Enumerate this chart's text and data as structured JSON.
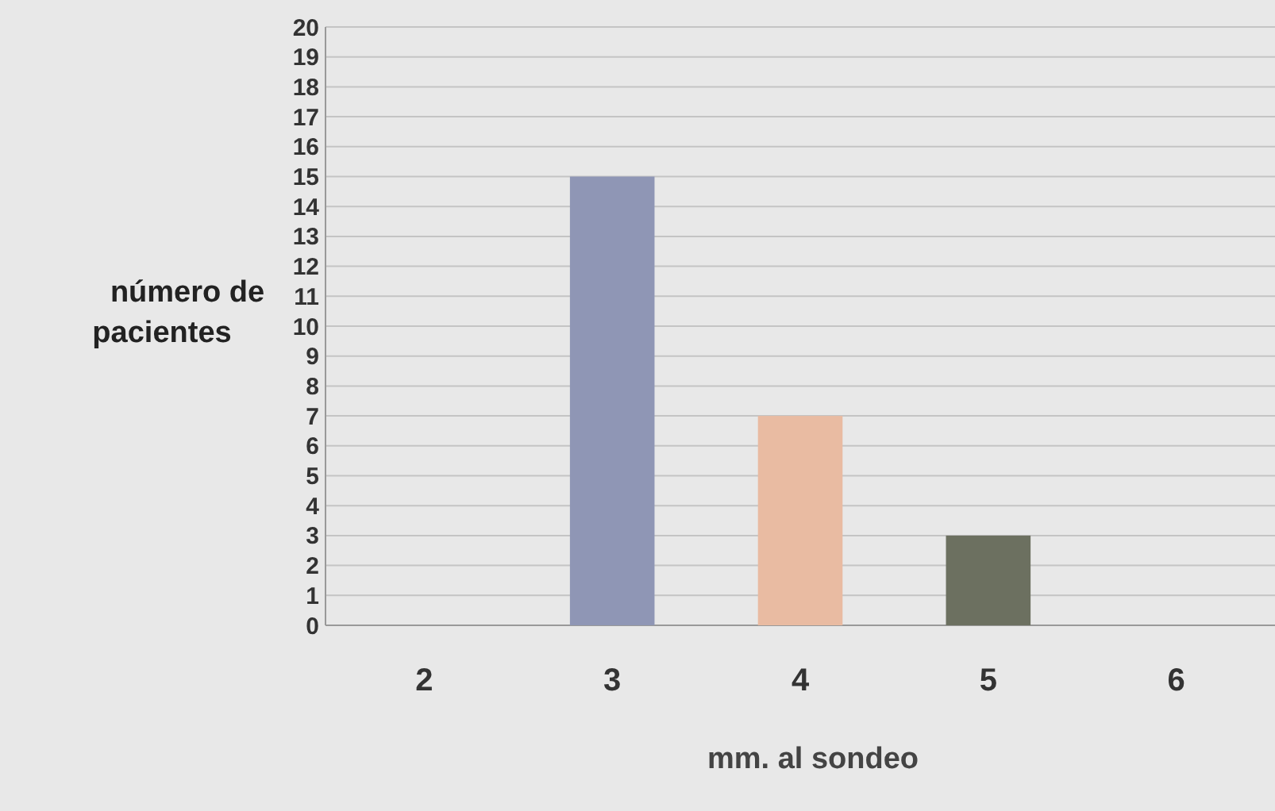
{
  "chart_data": {
    "type": "bar",
    "xlabel": "mm. al sondeo",
    "ylabel": "número de pacientes",
    "categories": [
      "2",
      "3",
      "4",
      "5",
      "6"
    ],
    "values": [
      0,
      15,
      7,
      3,
      0
    ],
    "colors": [
      "#8f96b5",
      "#8f96b5",
      "#e9bba2",
      "#6c7060",
      "#6c7060"
    ],
    "ylim": [
      0,
      20
    ],
    "yticks": [
      0,
      1,
      2,
      3,
      4,
      5,
      6,
      7,
      8,
      9,
      10,
      11,
      12,
      13,
      14,
      15,
      16,
      17,
      18,
      19,
      20
    ],
    "grid": "y"
  }
}
